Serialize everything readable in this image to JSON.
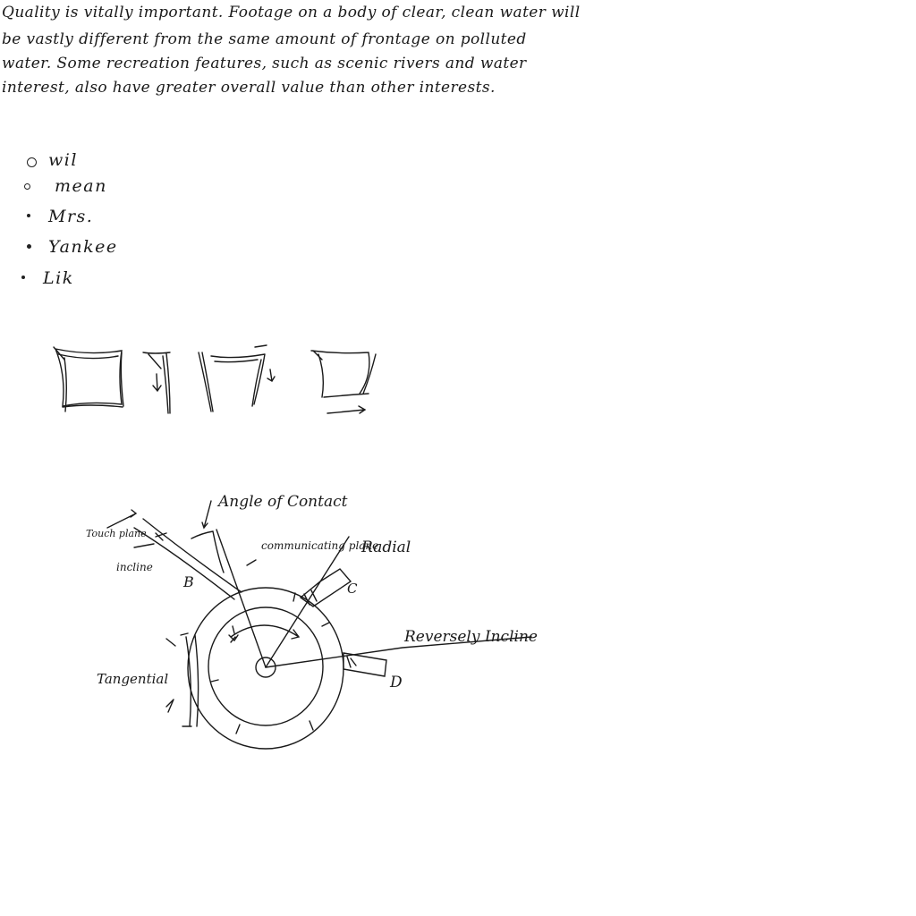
{
  "paragraph": {
    "lines": [
      "Quality is vitally important. Footage on a body of clear, clean water will",
      "be vastly different from the same amount of frontage on polluted",
      "water. Some recreation features, such as scenic rivers and water",
      "interest, also have greater overall value than other interests."
    ]
  },
  "bullets": [
    {
      "text": "wil"
    },
    {
      "text": "mean"
    },
    {
      "text": "Mrs."
    },
    {
      "text": "Yankee"
    },
    {
      "text": "Lik"
    }
  ],
  "diagram": {
    "labels": {
      "angle_of_contact": "Angle of Contact",
      "radial": "Radial",
      "communicating_plane": "communicating plane",
      "touch_plane": "Touch plane",
      "incline": "incline",
      "b": "B",
      "c": "C",
      "d": "D",
      "tangential": "Tangential",
      "reversely_incline": "Reversely Incline"
    }
  }
}
